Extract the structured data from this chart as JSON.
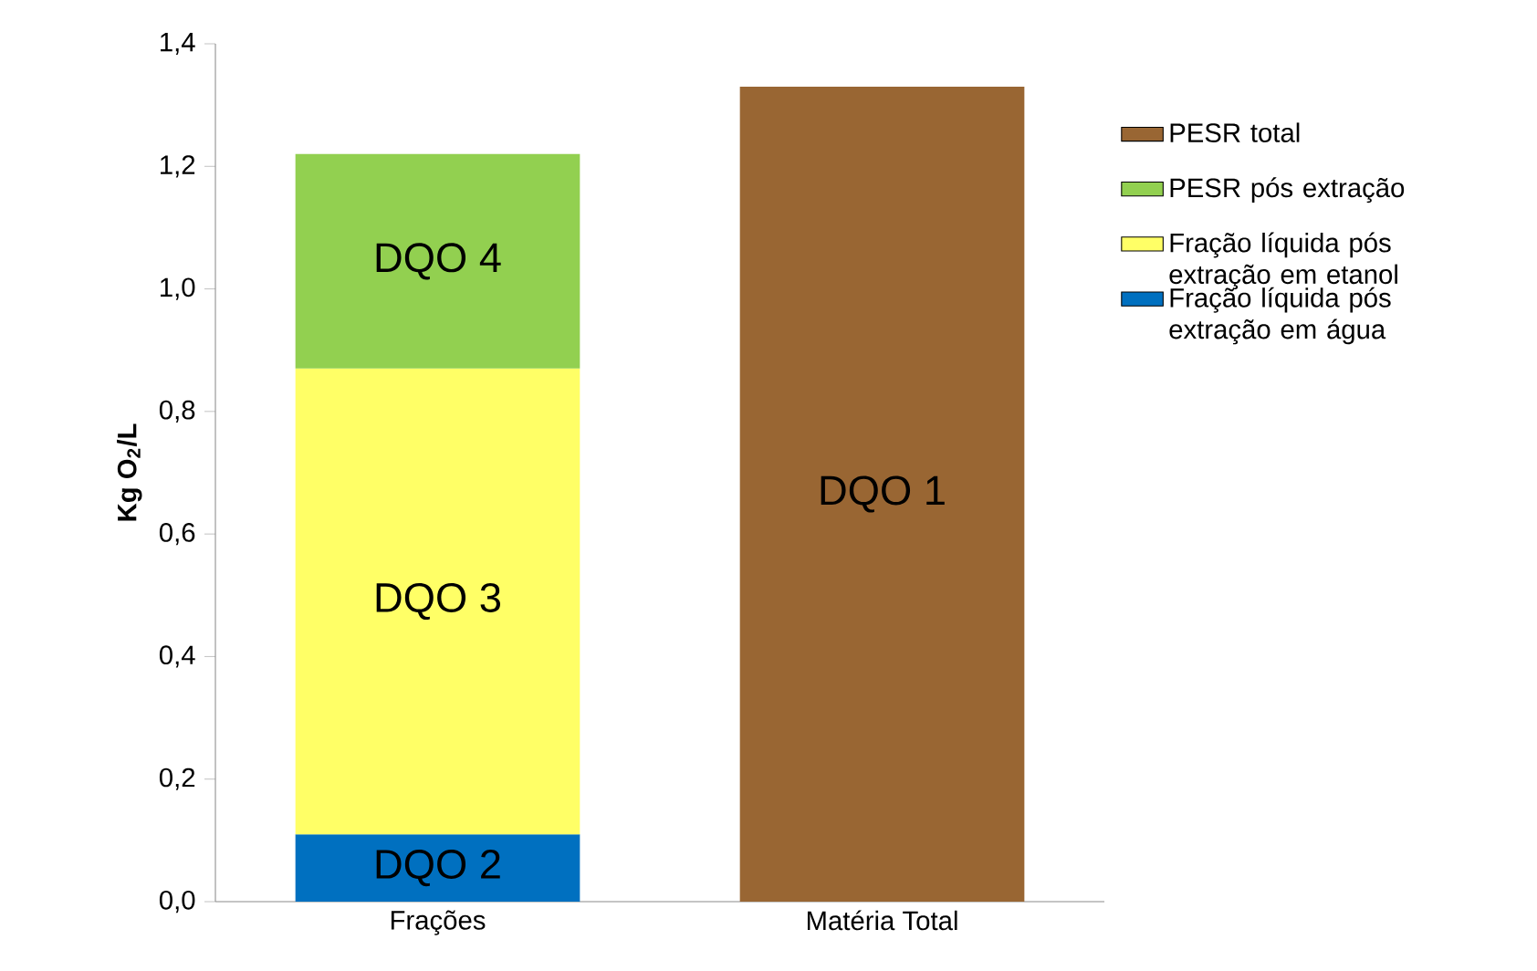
{
  "chart_data": {
    "type": "bar",
    "stacked": true,
    "categories": [
      "Frações",
      "Matéria Total"
    ],
    "series": [
      {
        "name": "Fração líquida pós extração em água",
        "color": "#0070c0",
        "values": [
          0.11,
          null
        ]
      },
      {
        "name": "Fração líquida pós extração em etanol",
        "color": "#ffff66",
        "values": [
          0.76,
          null
        ]
      },
      {
        "name": "PESR pós extração",
        "color": "#92d050",
        "values": [
          0.35,
          null
        ]
      },
      {
        "name": "PESR total",
        "color": "#996633",
        "values": [
          null,
          1.33
        ]
      }
    ],
    "ylabel": "Kg O$_{2}$/L",
    "ylim": [
      0,
      1.4
    ],
    "yticks": [
      {
        "value": 0,
        "label": "0,0"
      },
      {
        "value": 0.2,
        "label": "0,2"
      },
      {
        "value": 0.4,
        "label": "0,4"
      },
      {
        "value": 0.6,
        "label": "0,6"
      },
      {
        "value": 0.8,
        "label": "0,8"
      },
      {
        "value": 1.0,
        "label": "1,0"
      },
      {
        "value": 1.2,
        "label": "1,2"
      },
      {
        "value": 1.4,
        "label": "1,4"
      }
    ],
    "annotations": [
      "DQO 2",
      "DQO 3",
      "DQO 4",
      "DQO 1"
    ],
    "grid": false,
    "legend": "right"
  }
}
